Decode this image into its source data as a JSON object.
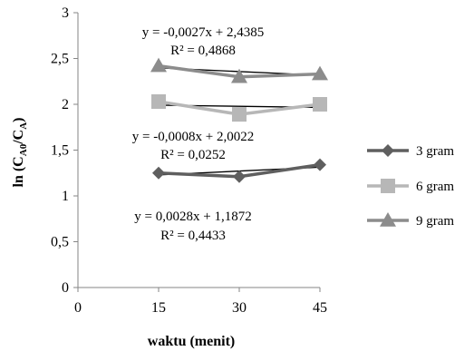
{
  "chart_data": {
    "type": "line",
    "xlabel": "waktu (menit)",
    "ylabel": "ln (C",
    "ylabel_sub1": "A0",
    "ylabel_mid": "/C",
    "ylabel_sub2": "A",
    "ylabel_end": ")",
    "xlim": [
      0,
      45
    ],
    "ylim": [
      0,
      3
    ],
    "x_ticks": [
      0,
      15,
      30,
      45
    ],
    "y_ticks": [
      0,
      0.5,
      1,
      1.5,
      2,
      2.5,
      3
    ],
    "x_tick_labels": [
      "0",
      "15",
      "30",
      "45"
    ],
    "y_tick_labels": [
      "0",
      "0,5",
      "1",
      "1,5",
      "2",
      "2,5",
      "3"
    ],
    "grid": false,
    "legend_position": "right",
    "series": [
      {
        "name": "3 gram",
        "color": "#5f5f5f",
        "marker": "diamond",
        "x": [
          15,
          30,
          45
        ],
        "y": [
          1.25,
          1.21,
          1.34
        ],
        "trendline": {
          "slope": 0.0028,
          "intercept": 1.1872,
          "equation": "y = 0,0028x + 1,1872",
          "r2": "R² = 0,4433"
        }
      },
      {
        "name": "6 gram",
        "color": "#b7b7b7",
        "marker": "square",
        "x": [
          15,
          30,
          45
        ],
        "y": [
          2.03,
          1.89,
          2.0
        ],
        "trendline": {
          "slope": -0.0008,
          "intercept": 2.0022,
          "equation": "y = -0,0008x + 2,0022",
          "r2": "R² = 0,0252"
        }
      },
      {
        "name": "9 gram",
        "color": "#8c8c8c",
        "marker": "triangle",
        "x": [
          15,
          30,
          45
        ],
        "y": [
          2.42,
          2.3,
          2.33
        ],
        "trendline": {
          "slope": -0.0027,
          "intercept": 2.4385,
          "equation": "y = -0,0027x + 2,4385",
          "r2": "R² = 0,4868"
        }
      }
    ]
  }
}
